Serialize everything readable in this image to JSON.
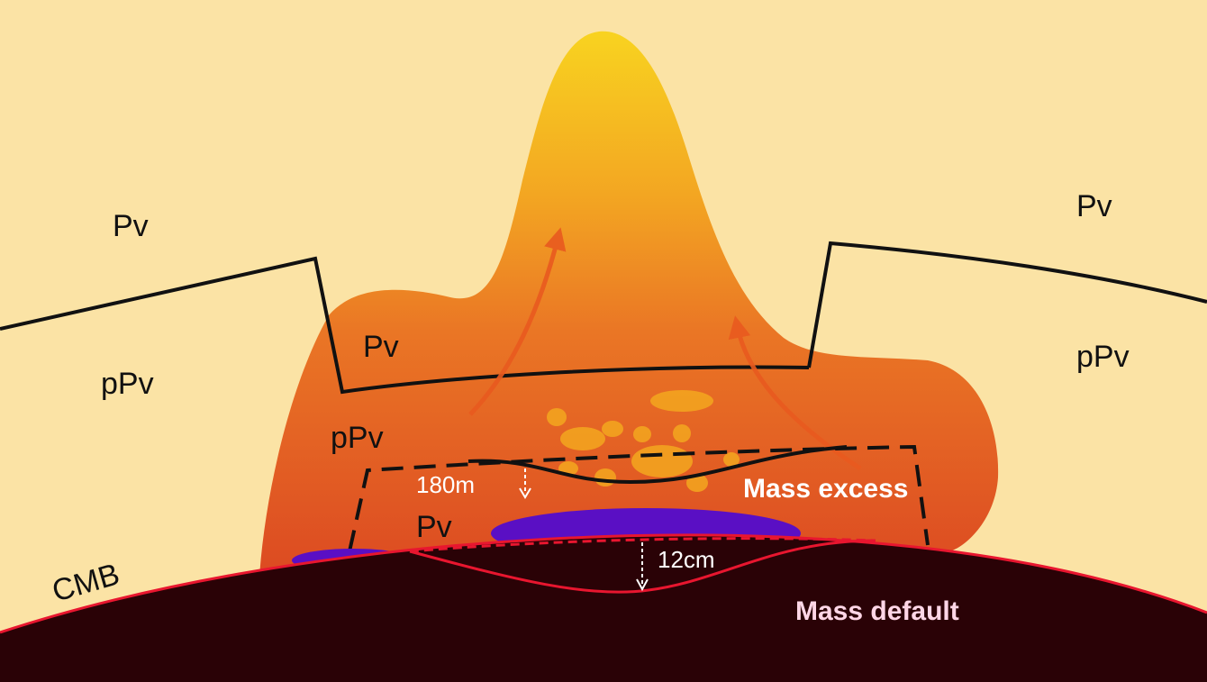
{
  "labels": {
    "pv_upper_left": "Pv",
    "ppv_left": "pPv",
    "pv_upper_right": "Pv",
    "ppv_right": "pPv",
    "pv_plume": "Pv",
    "ppv_plume": "pPv",
    "pv_lens": "Pv",
    "cmb": "CMB",
    "measure_180m": "180m",
    "measure_12cm": "12cm",
    "mass_excess": "Mass excess",
    "mass_default": "Mass default"
  },
  "colors": {
    "background": "#fbe3a5",
    "plume_top": "#f6c51f",
    "plume_bottom": "#df4e24",
    "core": "#2a0206",
    "cmb_line": "#e8162f",
    "melt_pocket": "#5a0fc4",
    "arrow": "#e95a1f"
  }
}
